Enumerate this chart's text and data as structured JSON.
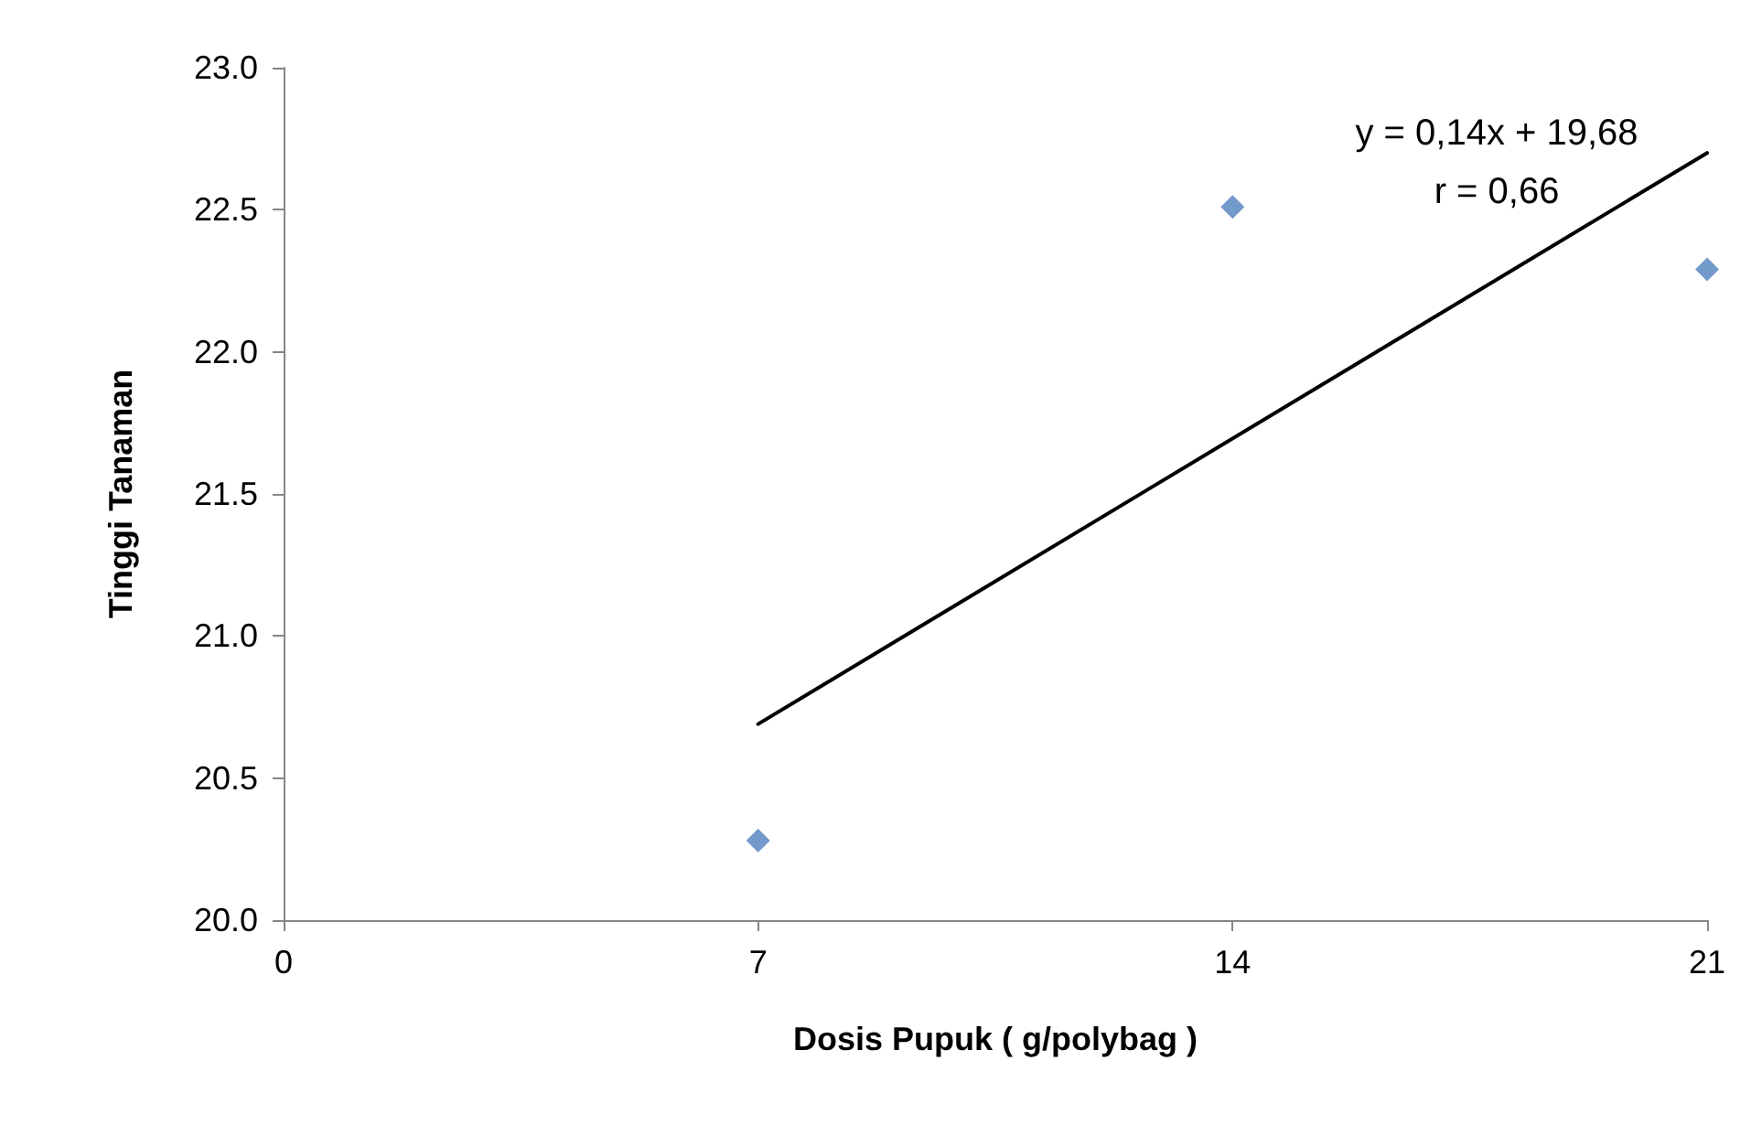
{
  "chart_data": {
    "type": "scatter",
    "xlabel": "Dosis Pupuk ( g/polybag )",
    "ylabel": "Tinggi Tanaman",
    "annotations": [
      "y = 0,14x + 19,68",
      "r = 0,66"
    ],
    "series": [
      {
        "type": "scatter",
        "color": "#4f81bd",
        "marker": "diamond",
        "x": [
          7,
          14,
          21
        ],
        "values": [
          20.28,
          22.51,
          22.29
        ]
      },
      {
        "type": "line",
        "color": "#000000",
        "marker": "none",
        "line_style": "solid",
        "x": [
          7,
          21
        ],
        "values": [
          20.69,
          22.7
        ]
      }
    ],
    "xlim": [
      0,
      21
    ],
    "xticks": [
      0,
      7,
      14,
      21
    ],
    "ylim": [
      20,
      23
    ],
    "yticks": [
      {
        "value": 20,
        "label": "20.0"
      },
      20.5,
      {
        "value": 21,
        "label": "21.0"
      },
      21.5,
      {
        "value": 22,
        "label": "22.0"
      },
      22.5,
      {
        "value": 23,
        "label": "23.0"
      }
    ],
    "grid": false
  }
}
